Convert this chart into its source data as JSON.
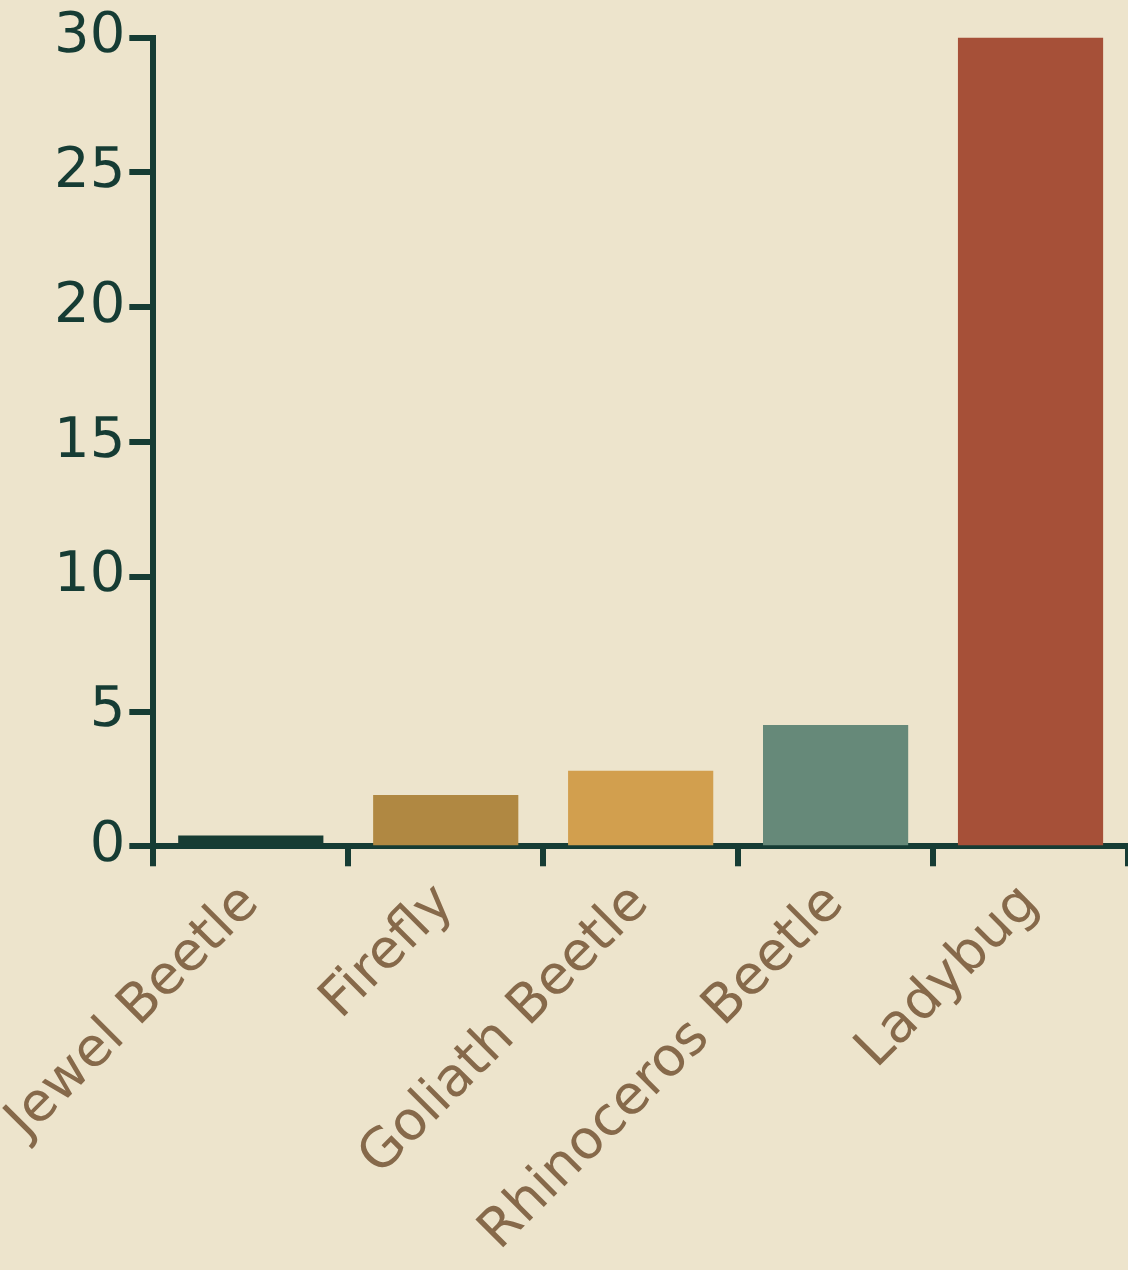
{
  "chart_data": {
    "type": "bar",
    "categories": [
      "Jewel Beetle",
      "Firefly",
      "Goliath Beetle",
      "Rhinoceros Beetle",
      "Ladybug"
    ],
    "values": [
      0.4,
      1.9,
      2.8,
      4.5,
      30
    ],
    "colors": [
      "#173c33",
      "#b08842",
      "#d29f4e",
      "#668979",
      "#a65038"
    ],
    "ylim": [
      0,
      30
    ],
    "yticks": [
      0,
      5,
      10,
      15,
      20,
      25,
      30
    ],
    "grid": false,
    "legend": false
  }
}
